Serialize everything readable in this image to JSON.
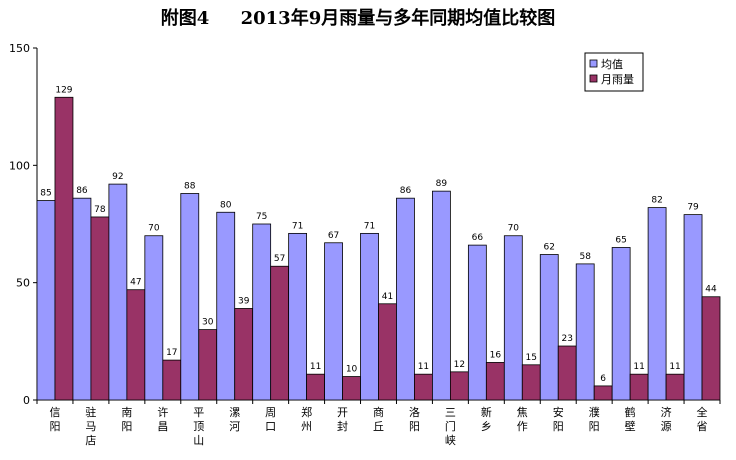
{
  "chart_data": {
    "type": "bar",
    "title": "附图4     2013年9月雨量与多年同期均值比较图",
    "categories": [
      "信阳",
      "驻马店",
      "南阳",
      "许昌",
      "平顶山",
      "漯河",
      "周口",
      "郑州",
      "开封",
      "商丘",
      "洛阳",
      "三门峡",
      "新乡",
      "焦作",
      "安阳",
      "濮阳",
      "鹤壁",
      "济源",
      "全省"
    ],
    "series": [
      {
        "name": "均值",
        "color": "#9999ff",
        "values": [
          85,
          86,
          92,
          70,
          88,
          80,
          75,
          71,
          67,
          71,
          86,
          89,
          66,
          70,
          62,
          58,
          65,
          82,
          79
        ]
      },
      {
        "name": "月雨量",
        "color": "#993366",
        "values": [
          129,
          78,
          47,
          17,
          30,
          39,
          57,
          11,
          10,
          41,
          11,
          12,
          16,
          15,
          23,
          6,
          11,
          11,
          44
        ]
      }
    ],
    "ylim": [
      0,
      150
    ],
    "yticks": [
      0,
      50,
      100,
      150
    ],
    "xlabel": "",
    "ylabel": "",
    "legend": "top-right",
    "grid": false
  }
}
